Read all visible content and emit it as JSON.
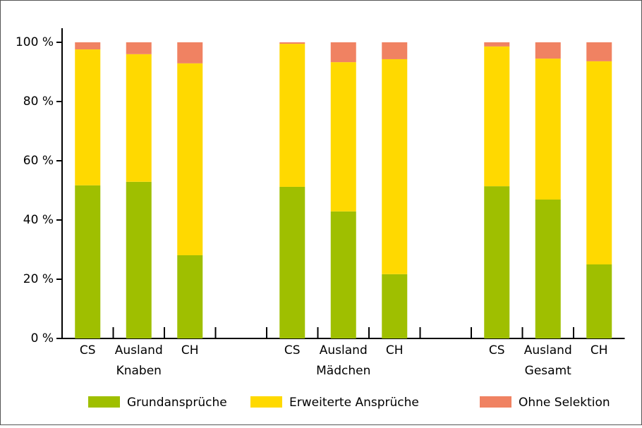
{
  "chart_data": {
    "type": "stacked_bar",
    "categories": [
      "CS",
      "Ausland",
      "CH",
      "CS",
      "Ausland",
      "CH",
      "CS",
      "Ausland",
      "CH"
    ],
    "groups": [
      "Knaben",
      "Mädchen",
      "Gesamt"
    ],
    "series": [
      {
        "name": "Grundansprüche",
        "color": "#9fbf00",
        "values": [
          51.7,
          52.9,
          28.1,
          51.2,
          42.9,
          21.7,
          51.4,
          46.9,
          25.0
        ]
      },
      {
        "name": "Erweiterte Ansprüche",
        "color": "#ffd900",
        "values": [
          45.9,
          43.1,
          64.8,
          48.3,
          50.4,
          72.6,
          47.2,
          47.6,
          68.6
        ]
      },
      {
        "name": "Ohne Selektion",
        "color": "#f08262",
        "values": [
          2.4,
          4.0,
          7.1,
          0.5,
          6.7,
          5.7,
          1.4,
          5.5,
          6.4
        ]
      }
    ],
    "ylim": [
      0,
      100
    ],
    "yticks": [
      {
        "value": 0,
        "label": "0 %"
      },
      {
        "value": 20,
        "label": "20 %"
      },
      {
        "value": 40,
        "label": "40 %"
      },
      {
        "value": 60,
        "label": "60 %"
      },
      {
        "value": 80,
        "label": "80 %"
      },
      {
        "value": 100,
        "label": "100 %"
      }
    ],
    "legend": "bottom"
  }
}
